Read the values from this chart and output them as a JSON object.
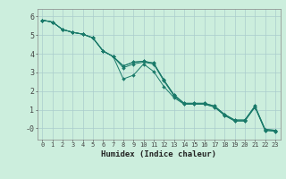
{
  "xlabel": "Humidex (Indice chaleur)",
  "background_color": "#cceedd",
  "grid_color": "#aacccc",
  "line_color": "#1a7a6a",
  "marker_color": "#1a7a6a",
  "xlim": [
    -0.5,
    23.5
  ],
  "ylim": [
    -0.6,
    6.4
  ],
  "xticks": [
    0,
    1,
    2,
    3,
    4,
    5,
    6,
    7,
    8,
    9,
    10,
    11,
    12,
    13,
    14,
    15,
    16,
    17,
    18,
    19,
    20,
    21,
    22,
    23
  ],
  "yticks": [
    0,
    1,
    2,
    3,
    4,
    5,
    6
  ],
  "ytick_labels": [
    "-0",
    "1",
    "2",
    "3",
    "4",
    "5",
    "6"
  ],
  "series": [
    [
      5.8,
      5.7,
      5.3,
      5.15,
      5.05,
      4.85,
      4.15,
      3.85,
      2.65,
      2.85,
      3.45,
      3.05,
      2.25,
      1.65,
      1.3,
      1.3,
      1.3,
      1.15,
      0.7,
      0.4,
      0.4,
      1.15,
      -0.1,
      -0.15
    ],
    [
      5.8,
      5.7,
      5.3,
      5.15,
      5.05,
      4.85,
      4.15,
      3.85,
      3.25,
      3.45,
      3.55,
      3.45,
      2.55,
      1.75,
      1.3,
      1.3,
      1.3,
      1.15,
      0.7,
      0.4,
      0.4,
      1.15,
      -0.1,
      -0.15
    ],
    [
      5.8,
      5.7,
      5.3,
      5.15,
      5.05,
      4.85,
      4.15,
      3.85,
      3.35,
      3.55,
      3.6,
      3.5,
      2.6,
      1.8,
      1.35,
      1.35,
      1.35,
      1.2,
      0.75,
      0.45,
      0.45,
      1.2,
      -0.05,
      -0.1
    ],
    [
      5.8,
      5.7,
      5.3,
      5.15,
      5.05,
      4.85,
      4.15,
      3.85,
      3.35,
      3.55,
      3.6,
      3.5,
      2.6,
      1.8,
      1.35,
      1.35,
      1.35,
      1.2,
      0.75,
      0.45,
      0.45,
      1.2,
      -0.05,
      -0.1
    ]
  ]
}
